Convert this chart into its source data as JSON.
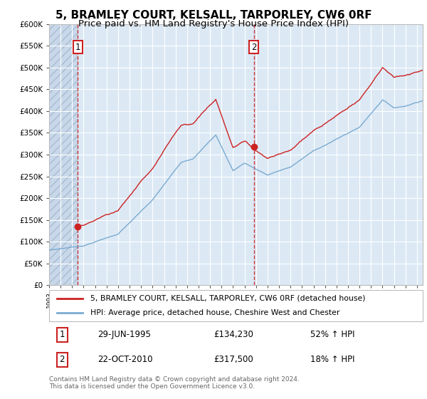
{
  "title": "5, BRAMLEY COURT, KELSALL, TARPORLEY, CW6 0RF",
  "subtitle": "Price paid vs. HM Land Registry's House Price Index (HPI)",
  "ylim": [
    0,
    600000
  ],
  "yticks": [
    0,
    50000,
    100000,
    150000,
    200000,
    250000,
    300000,
    350000,
    400000,
    450000,
    500000,
    550000,
    600000
  ],
  "bg_color": "#dce9f5",
  "hatch_color": "#c8d8ea",
  "sale1_date_year": 1995.5,
  "sale1_price": 134230,
  "sale2_date_year": 2010.8,
  "sale2_price": 317500,
  "legend_line1": "5, BRAMLEY COURT, KELSALL, TARPORLEY, CW6 0RF (detached house)",
  "legend_line2": "HPI: Average price, detached house, Cheshire West and Chester",
  "annotation1_date": "29-JUN-1995",
  "annotation1_price": "£134,230",
  "annotation1_hpi": "52% ↑ HPI",
  "annotation2_date": "22-OCT-2010",
  "annotation2_price": "£317,500",
  "annotation2_hpi": "18% ↑ HPI",
  "footer": "Contains HM Land Registry data © Crown copyright and database right 2024.\nThis data is licensed under the Open Government Licence v3.0.",
  "red_line_color": "#cc2222",
  "blue_line_color": "#7aaad0",
  "sale_dot_color": "#cc2222",
  "vline1_color": "#cc2222",
  "vline2_color": "#cc2222",
  "title_fontsize": 11,
  "subtitle_fontsize": 9.5,
  "xstart": 1993.0,
  "xend": 2025.5
}
